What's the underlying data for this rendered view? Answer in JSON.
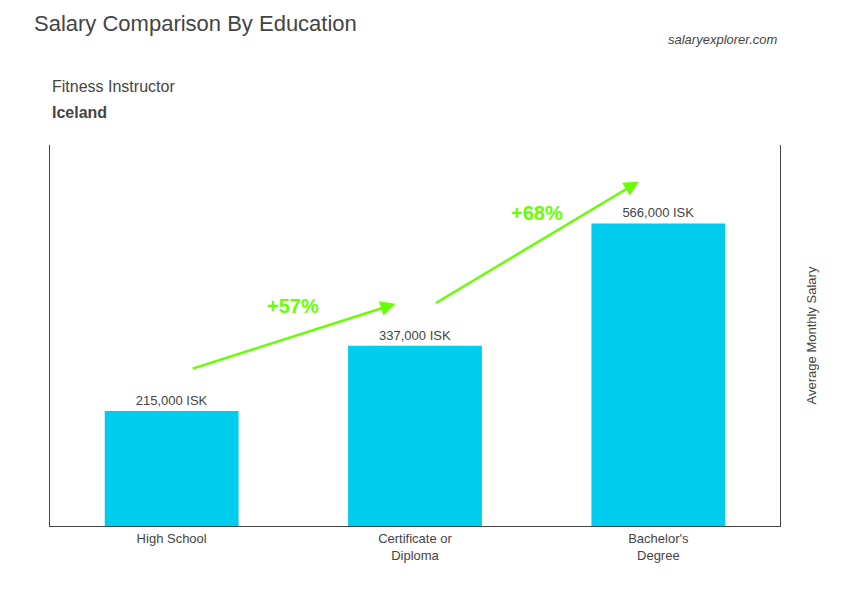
{
  "chart_data": {
    "type": "bar",
    "title": "Salary Comparison By Education",
    "subtitle": [
      "Fitness Instructor",
      "Iceland"
    ],
    "ylabel": "Average Monthly Salary",
    "categories": [
      "High School",
      "Certificate or\nDiploma",
      "Bachelor's\nDegree"
    ],
    "values": [
      215000,
      337000,
      566000
    ],
    "value_labels": [
      "215,000 ISK",
      "337,000 ISK",
      "566,000 ISK"
    ],
    "data_labels": true,
    "color": "#00ccee",
    "ylim": [
      0,
      712800
    ],
    "tick_labels": "x",
    "grid": false,
    "annotations": [
      {
        "text": "+57%",
        "from": "High School",
        "to": "Certificate or\nDiploma",
        "color": "#66ff00"
      },
      {
        "text": "+68%",
        "from": "Certificate or\nDiploma",
        "to": "Bachelor's\nDegree",
        "color": "#66ff00"
      },
      {
        "text": "salaryexplorer.com"
      }
    ]
  }
}
